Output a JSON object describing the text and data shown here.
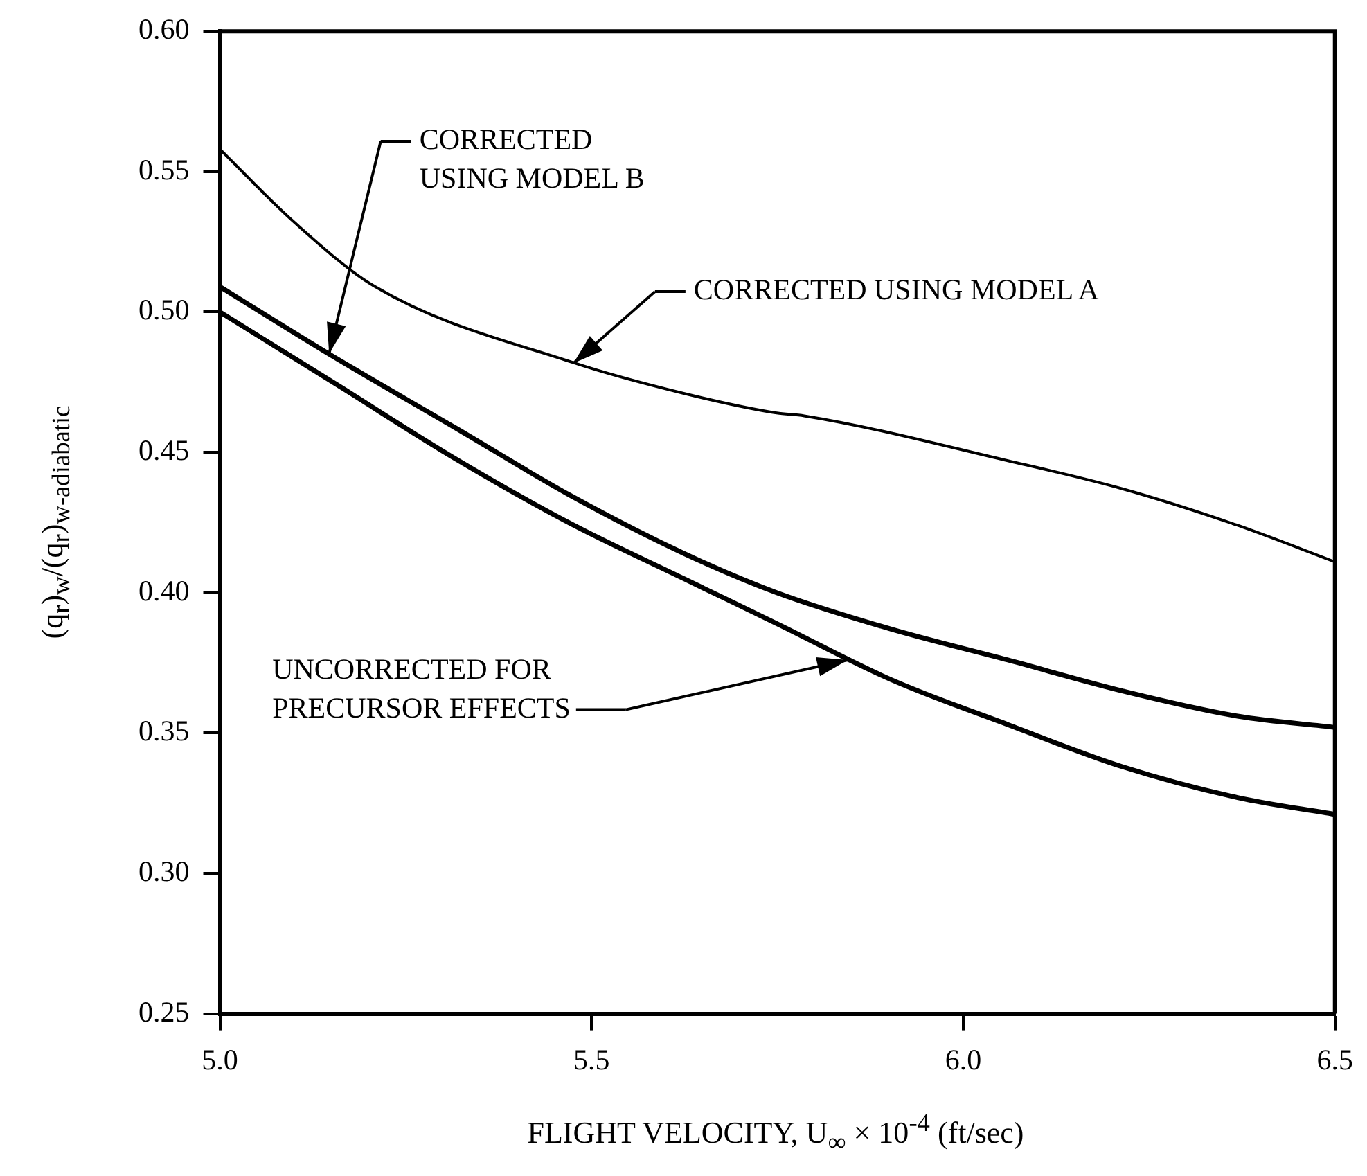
{
  "chart_data": {
    "type": "line",
    "xlabel": "FLIGHT VELOCITY, U$_{∞}$ × 10$^{-4}$ (ft/sec)",
    "ylabel": "(q$_{r}$)$_{w}$/(q$_{r}$)$_{w-adiabatic}$",
    "xlim": [
      5.0,
      6.5
    ],
    "xticks": [
      {
        "value": 5.0,
        "label": "5.0"
      },
      {
        "value": 5.5,
        "label": "5.5"
      },
      {
        "value": 6.0,
        "label": "6.0"
      },
      {
        "value": 6.5,
        "label": "6.5"
      }
    ],
    "ylim": [
      0.25,
      0.6
    ],
    "yticks": [
      {
        "value": 0.25,
        "label": "0.25"
      },
      {
        "value": 0.3,
        "label": "0.30"
      },
      {
        "value": 0.35,
        "label": "0.35"
      },
      {
        "value": 0.4,
        "label": "0.40"
      },
      {
        "value": 0.45,
        "label": "0.45"
      },
      {
        "value": 0.5,
        "label": "0.50"
      },
      {
        "value": 0.55,
        "label": "0.55"
      },
      {
        "value": 0.6,
        "label": "0.60"
      }
    ],
    "grid": false,
    "legend": false,
    "marker": "none",
    "line_style": "solid",
    "series": [
      {
        "color": "#000000",
        "x": [
          5.0,
          5.1,
          5.209,
          5.475,
          5.624,
          5.749,
          5.786,
          6.06,
          6.214,
          6.369,
          6.5
        ],
        "values": [
          0.558,
          0.532,
          0.509,
          0.482,
          0.471,
          0.464,
          0.463,
          0.447,
          0.437,
          0.424,
          0.411
        ]
      },
      {
        "color": "#000000",
        "x": [
          5.0,
          5.147,
          5.315,
          5.469,
          5.624,
          5.749,
          5.903,
          6.06,
          6.214,
          6.369,
          6.5
        ],
        "values": [
          0.509,
          0.485,
          0.459,
          0.435,
          0.414,
          0.4,
          0.387,
          0.376,
          0.365,
          0.356,
          0.352
        ]
      },
      {
        "color": "#000000",
        "x": [
          5.0,
          5.158,
          5.315,
          5.469,
          5.624,
          5.749,
          5.903,
          6.06,
          6.214,
          6.369,
          6.5
        ],
        "values": [
          0.5,
          0.474,
          0.448,
          0.425,
          0.405,
          0.389,
          0.369,
          0.353,
          0.338,
          0.327,
          0.321
        ]
      }
    ],
    "annotations": [
      "CORRECTED\nUSING MODEL B",
      "CORRECTED USING MODEL A",
      "UNCORRECTED FOR\nPRECURSOR EFFECTS"
    ]
  }
}
